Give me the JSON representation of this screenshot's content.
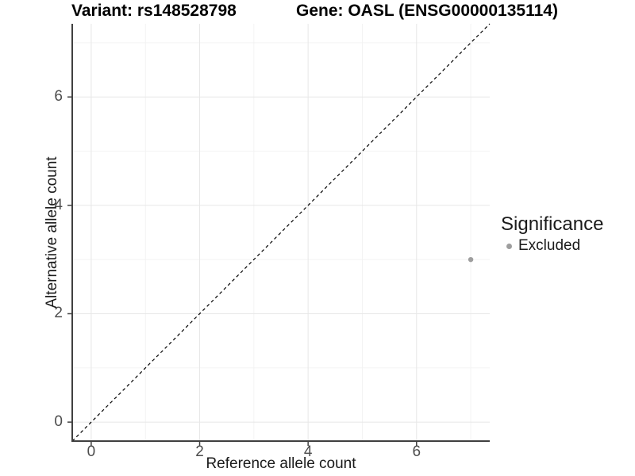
{
  "figure": {
    "titles": {
      "variant": "Variant: rs148528798",
      "gene": "Gene: OASL (ENSG00000135114)"
    },
    "x_axis": {
      "label": "Reference allele count",
      "tick_labels": [
        "0",
        "2",
        "4",
        "6"
      ]
    },
    "y_axis": {
      "label": "Alternative allele count",
      "tick_labels": [
        "0",
        "2",
        "4",
        "6"
      ]
    },
    "legend": {
      "title": "Significance",
      "items": [
        {
          "label": "Excluded",
          "color": "#9e9e9e"
        }
      ]
    }
  },
  "chart_data": {
    "type": "scatter",
    "title": "Variant: rs148528798 | Gene: OASL (ENSG00000135114)",
    "xlabel": "Reference allele count",
    "ylabel": "Alternative allele count",
    "xlim": [
      -0.35,
      7.35
    ],
    "ylim": [
      -0.35,
      7.35
    ],
    "x_major_ticks": [
      0,
      2,
      4,
      6
    ],
    "y_major_ticks": [
      0,
      2,
      4,
      6
    ],
    "x_minor_ticks": [
      1,
      3,
      5,
      7
    ],
    "y_minor_ticks": [
      1,
      3,
      5,
      7
    ],
    "grid": "major+minor",
    "legend_position": "right",
    "series": [
      {
        "name": "Excluded",
        "marker": "circle",
        "color": "#9e9e9e",
        "points": [
          [
            7,
            3
          ]
        ]
      }
    ],
    "annotations": [
      {
        "type": "line",
        "role": "identity-diagonal",
        "equation": "y = x",
        "style": "dashed",
        "color": "#000000"
      }
    ]
  },
  "style": {
    "background": "#ffffff",
    "grid_major_color": "#e7e7e7",
    "grid_minor_color": "#f3f3f3",
    "axis_line_color": "#404040",
    "tick_color": "#404040",
    "tick_label_color": "#4d4d4d",
    "point_color": "#9e9e9e",
    "diagonal_color": "#000000"
  }
}
